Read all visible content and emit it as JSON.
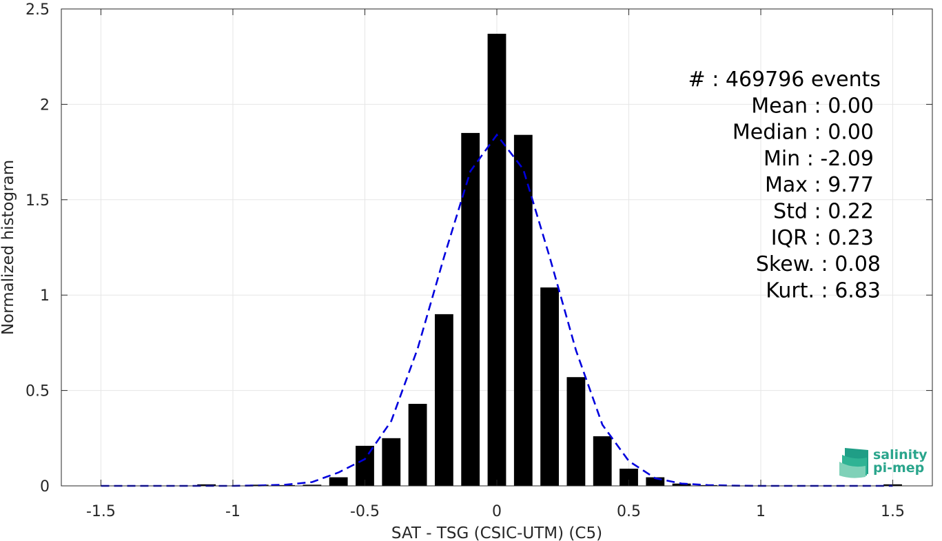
{
  "chart_data": {
    "type": "bar",
    "xlabel": "SAT - TSG (CSIC-UTM) (C5)",
    "ylabel": "Normalized histogram",
    "xlim": [
      -1.65,
      1.65
    ],
    "ylim": [
      0,
      2.5
    ],
    "xticks": [
      -1.5,
      -1,
      -0.5,
      0,
      0.5,
      1,
      1.5
    ],
    "xtick_labels": [
      "-1.5",
      "-1",
      "-0.5",
      "0",
      "0.5",
      "1",
      "1.5"
    ],
    "yticks": [
      0,
      0.5,
      1,
      1.5,
      2,
      2.5
    ],
    "ytick_labels": [
      "0",
      "0.5",
      "1",
      "1.5",
      "2",
      "2.5"
    ],
    "grid": true,
    "bar_color": "#000000",
    "bar_width": 0.07,
    "bars": [
      {
        "x": -1.1,
        "y": 0.008
      },
      {
        "x": -0.9,
        "y": 0.006
      },
      {
        "x": -0.8,
        "y": 0.004
      },
      {
        "x": -0.7,
        "y": 0.006
      },
      {
        "x": -0.6,
        "y": 0.045
      },
      {
        "x": -0.5,
        "y": 0.21
      },
      {
        "x": -0.4,
        "y": 0.25
      },
      {
        "x": -0.3,
        "y": 0.43
      },
      {
        "x": -0.2,
        "y": 0.9
      },
      {
        "x": -0.1,
        "y": 1.85
      },
      {
        "x": 0.0,
        "y": 2.37
      },
      {
        "x": 0.1,
        "y": 1.84
      },
      {
        "x": 0.2,
        "y": 1.04
      },
      {
        "x": 0.3,
        "y": 0.57
      },
      {
        "x": 0.4,
        "y": 0.26
      },
      {
        "x": 0.5,
        "y": 0.09
      },
      {
        "x": 0.6,
        "y": 0.045
      },
      {
        "x": 0.7,
        "y": 0.012
      },
      {
        "x": 0.8,
        "y": 0.004
      },
      {
        "x": 1.5,
        "y": 0.008
      }
    ],
    "fit_curve": {
      "color": "#0000dd",
      "style": "dashed",
      "x": [
        -1.5,
        -1.4,
        -1.3,
        -1.2,
        -1.1,
        -1.0,
        -0.9,
        -0.8,
        -0.7,
        -0.6,
        -0.5,
        -0.4,
        -0.3,
        -0.2,
        -0.1,
        0.0,
        0.1,
        0.2,
        0.3,
        0.4,
        0.5,
        0.6,
        0.7,
        0.8,
        0.9,
        1.0,
        1.1,
        1.2,
        1.3,
        1.4,
        1.5
      ],
      "y": [
        0.0,
        0.0,
        0.0,
        0.0,
        0.0,
        0.0,
        0.002,
        0.006,
        0.02,
        0.07,
        0.14,
        0.34,
        0.72,
        1.2,
        1.65,
        1.84,
        1.66,
        1.2,
        0.71,
        0.32,
        0.13,
        0.04,
        0.012,
        0.004,
        0.001,
        0.0,
        0.0,
        0.0,
        0.0,
        0.0,
        0.0
      ]
    },
    "stats": [
      "#  : 469796 events",
      "Mean : 0.00",
      "Median : 0.00",
      "Min : -2.09",
      "Max : 9.77",
      "Std : 0.22",
      "IQR : 0.23",
      "Skew. : 0.08",
      "Kurt. : 6.83"
    ]
  },
  "logo": {
    "line1": "salinity",
    "line2": "pi-mep",
    "color": "#2aa58c"
  }
}
